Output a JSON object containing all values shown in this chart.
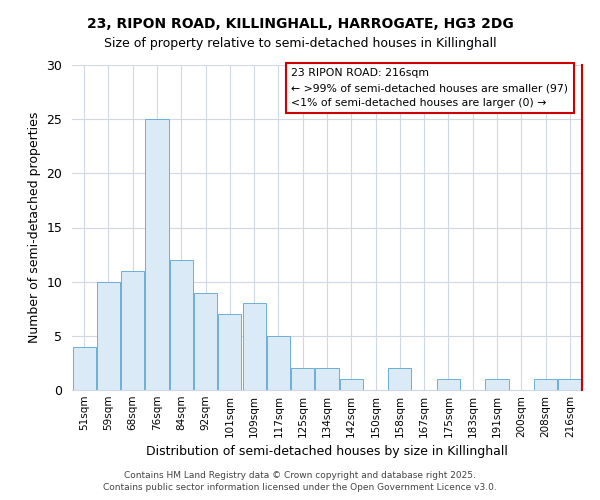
{
  "title1": "23, RIPON ROAD, KILLINGHALL, HARROGATE, HG3 2DG",
  "title2": "Size of property relative to semi-detached houses in Killinghall",
  "xlabel": "Distribution of semi-detached houses by size in Killinghall",
  "ylabel": "Number of semi-detached properties",
  "categories": [
    "51sqm",
    "59sqm",
    "68sqm",
    "76sqm",
    "84sqm",
    "92sqm",
    "101sqm",
    "109sqm",
    "117sqm",
    "125sqm",
    "134sqm",
    "142sqm",
    "150sqm",
    "158sqm",
    "167sqm",
    "175sqm",
    "183sqm",
    "191sqm",
    "200sqm",
    "208sqm",
    "216sqm"
  ],
  "values": [
    4,
    10,
    11,
    25,
    12,
    9,
    7,
    8,
    5,
    2,
    2,
    1,
    0,
    2,
    0,
    1,
    0,
    1,
    0,
    1,
    1
  ],
  "bar_color": "#daeaf7",
  "bar_edge_color": "#6aaed6",
  "legend_title": "23 RIPON ROAD: 216sqm",
  "legend_line1": "← >99% of semi-detached houses are smaller (97)",
  "legend_line2": "<1% of semi-detached houses are larger (0) →",
  "footer1": "Contains HM Land Registry data © Crown copyright and database right 2025.",
  "footer2": "Contains public sector information licensed under the Open Government Licence v3.0.",
  "ylim": [
    0,
    30
  ],
  "yticks": [
    0,
    5,
    10,
    15,
    20,
    25,
    30
  ],
  "background_color": "#ffffff",
  "grid_color": "#d0d8e4",
  "red_color": "#cc0000"
}
